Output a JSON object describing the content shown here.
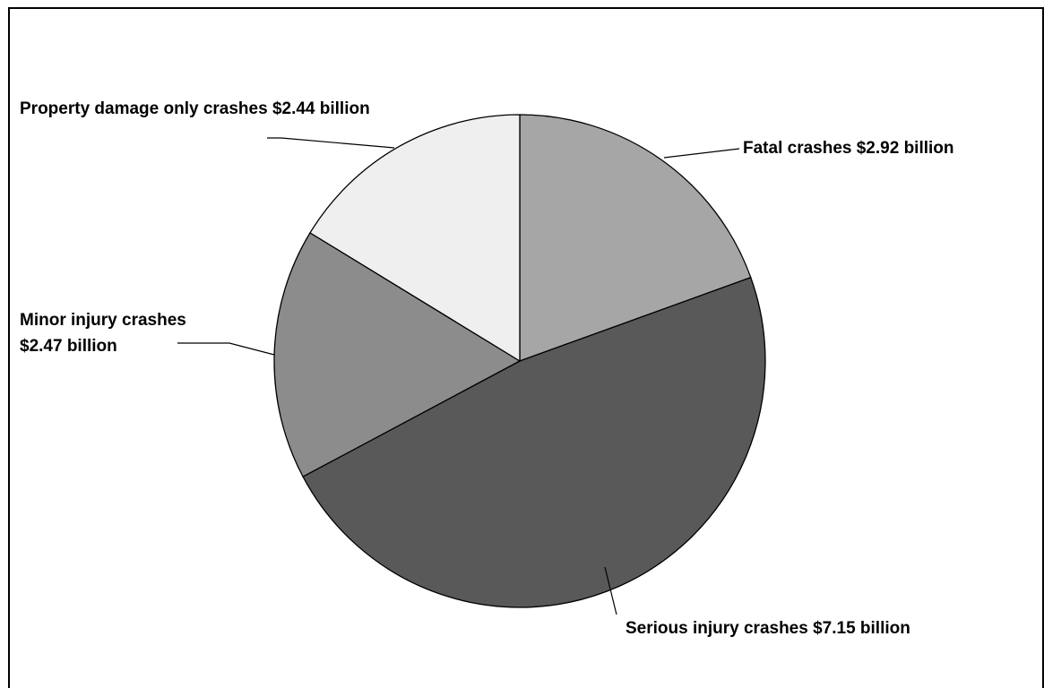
{
  "chart_data": {
    "type": "pie",
    "title": "",
    "slices": [
      {
        "name": "Fatal crashes",
        "value": 2.92,
        "label": "Fatal crashes $2.92 billion",
        "color": "#a6a6a6"
      },
      {
        "name": "Serious injury crashes",
        "value": 7.15,
        "label": "Serious injury crashes $7.15 billion",
        "color": "#595959"
      },
      {
        "name": "Minor injury crashes",
        "value": 2.47,
        "label_lines": [
          "Minor injury crashes",
          "$2.47 billion"
        ],
        "color": "#8c8c8c"
      },
      {
        "name": "Property damage only crashes",
        "value": 2.44,
        "label": "Property damage only crashes $2.44   billion",
        "color": "#efefef"
      }
    ],
    "unit": "billion",
    "start_angle": "12 o'clock",
    "direction": "clockwise",
    "legend": "none"
  }
}
